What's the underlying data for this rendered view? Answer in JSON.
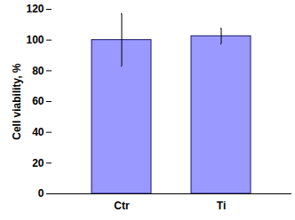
{
  "chart_data": {
    "type": "bar",
    "categories": [
      "Ctr",
      "Ti"
    ],
    "values": [
      100,
      102.5
    ],
    "errors": [
      17,
      5
    ],
    "color": "#9999ff",
    "ylabel": "Cell viability, %",
    "ylim": [
      0,
      120
    ],
    "yticks": [
      0,
      20,
      40,
      60,
      80,
      100,
      120
    ],
    "grid": false
  }
}
